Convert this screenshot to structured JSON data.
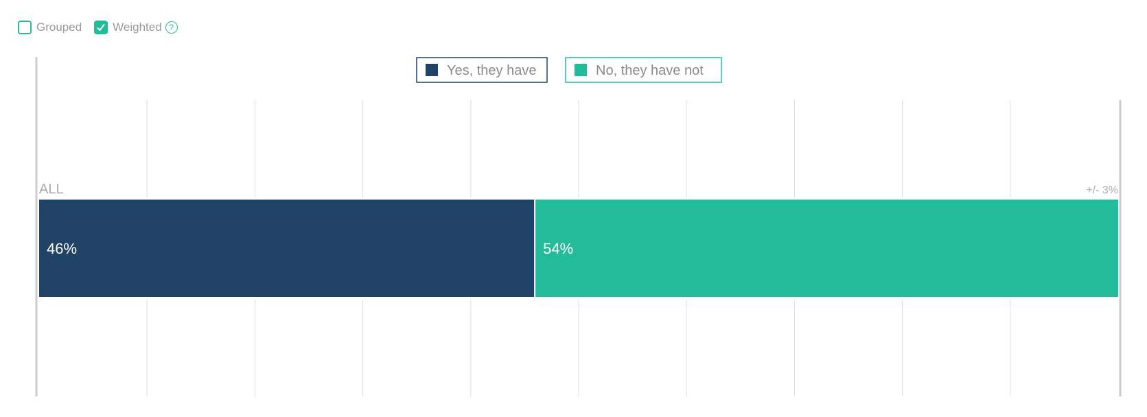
{
  "controls": {
    "grouped": {
      "label": "Grouped",
      "checked": false
    },
    "weighted": {
      "label": "Weighted",
      "checked": true
    },
    "help_label": "?"
  },
  "colors": {
    "accent": "#23bc9b",
    "series_yes": "#204266",
    "series_no": "#23bc9b",
    "grid": "#dddddd",
    "axis": "#cccccc",
    "muted_text": "#999999"
  },
  "chart_data": {
    "type": "bar",
    "orientation": "horizontal",
    "stacked": true,
    "categories": [
      "ALL"
    ],
    "series": [
      {
        "name": "Yes, they have",
        "values": [
          46
        ]
      },
      {
        "name": "No, they have not",
        "values": [
          54
        ]
      }
    ],
    "value_labels": [
      "46%",
      "54%"
    ],
    "margin_of_error": "+/- 3%",
    "xlim": [
      0,
      100
    ],
    "grid": true,
    "legend_position": "top-center"
  }
}
